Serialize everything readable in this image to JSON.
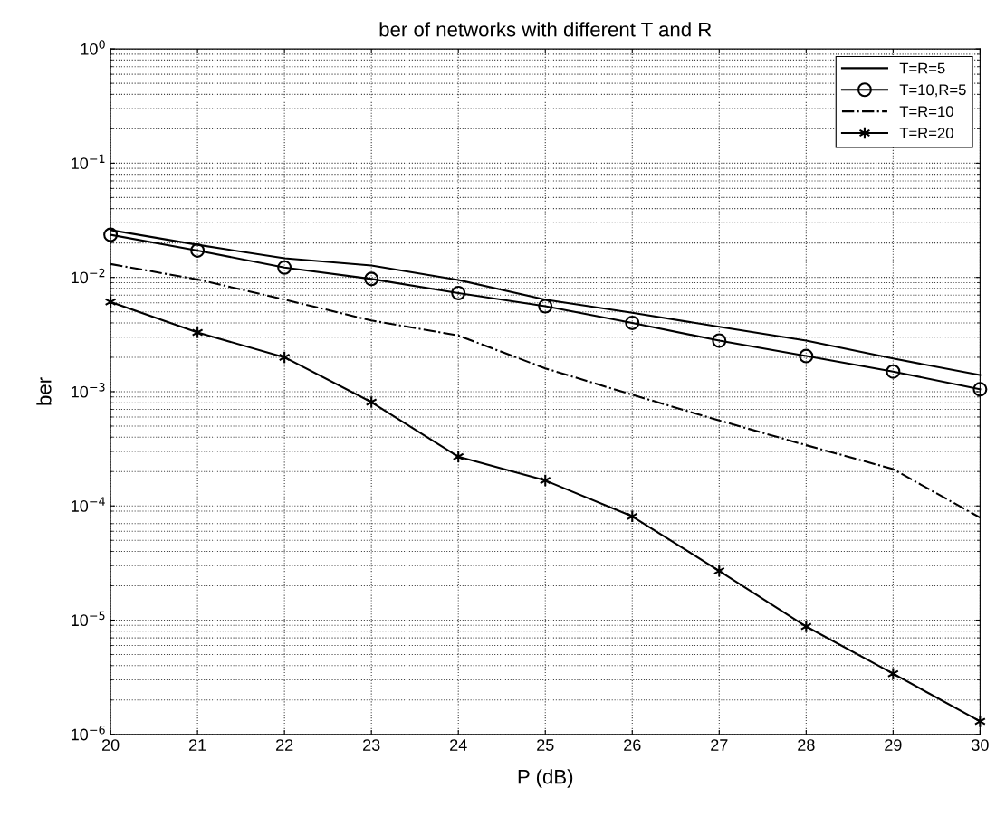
{
  "chart_data": {
    "type": "line",
    "title": "ber of networks with different T and R",
    "xlabel": "P (dB)",
    "ylabel": "ber",
    "log": "y",
    "grid": true,
    "legend": "top right",
    "x": [
      20,
      21,
      22,
      23,
      24,
      25,
      26,
      27,
      28,
      29,
      30
    ],
    "xlim": [
      20,
      30
    ],
    "xticks": [
      20,
      21,
      22,
      23,
      24,
      25,
      26,
      27,
      28,
      29,
      30
    ],
    "ylim": [
      1e-06,
      1
    ],
    "yticks": [
      {
        "value": 1e-06,
        "label": "10$^{−6}$"
      },
      {
        "value": 1e-05,
        "label": "10$^{−5}$"
      },
      {
        "value": 0.0001,
        "label": "10$^{−4}$"
      },
      {
        "value": 0.001,
        "label": "10$^{−3}$"
      },
      {
        "value": 0.01,
        "label": "10$^{−2}$"
      },
      {
        "value": 0.1,
        "label": "10$^{−1}$"
      },
      {
        "value": 1,
        "label": "10$^{0}$"
      }
    ],
    "series": [
      {
        "name": "T=R=5",
        "color": "#000000",
        "marker": "none",
        "line_style": "solid",
        "values": [
          0.026,
          0.0193,
          0.0147,
          0.0127,
          0.0095,
          0.0064,
          0.0049,
          0.0037,
          0.0028,
          0.00195,
          0.0014
        ]
      },
      {
        "name": "T=10,R=5",
        "color": "#000000",
        "marker": "circle",
        "line_style": "solid",
        "values": [
          0.0236,
          0.0172,
          0.0122,
          0.0097,
          0.0073,
          0.0056,
          0.004,
          0.0028,
          0.00205,
          0.0015,
          0.00105
        ]
      },
      {
        "name": "T=R=10",
        "color": "#000000",
        "marker": "none",
        "line_style": "dashdot",
        "values": [
          0.0131,
          0.0096,
          0.0064,
          0.0042,
          0.0031,
          0.0016,
          0.00094,
          0.00056,
          0.00034,
          0.00021,
          7.9e-05
        ]
      },
      {
        "name": "T=R=20",
        "color": "#000000",
        "marker": "cross",
        "line_style": "solid",
        "values": [
          0.0061,
          0.0033,
          0.002,
          0.00081,
          0.00027,
          0.000167,
          8.1e-05,
          2.7e-05,
          8.8e-06,
          3.4e-06,
          1.3e-06
        ]
      }
    ]
  }
}
